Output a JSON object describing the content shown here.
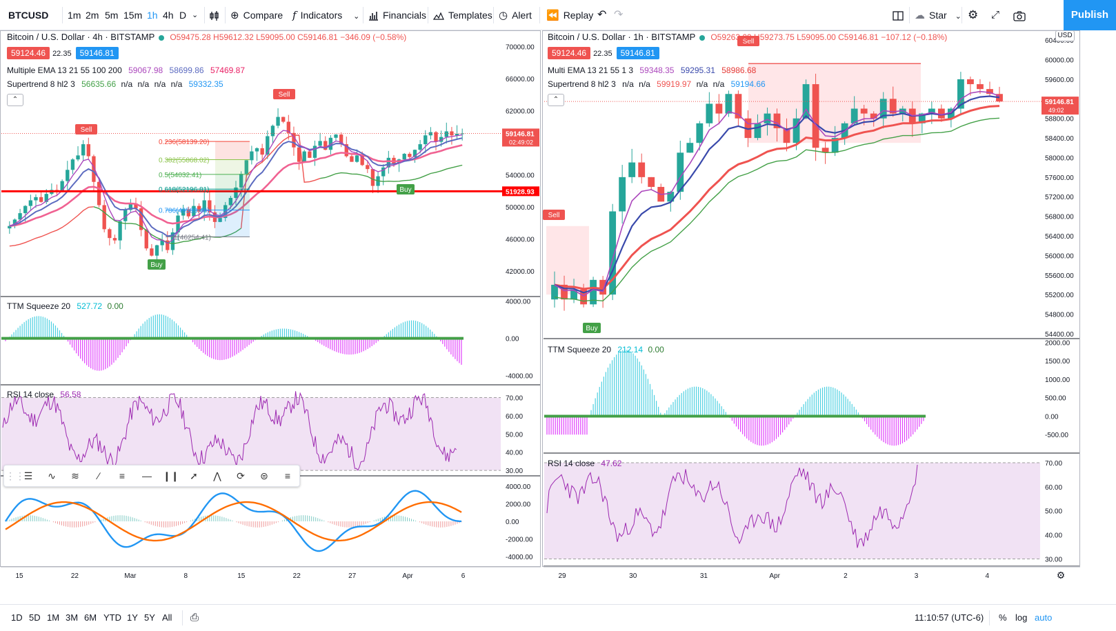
{
  "toolbar": {
    "symbol": "BTCUSD",
    "intervals": [
      "1m",
      "2m",
      "5m",
      "15m",
      "1h",
      "4h",
      "D"
    ],
    "active_interval": "1h",
    "compare": "Compare",
    "indicators": "Indicators",
    "financials": "Financials",
    "templates": "Templates",
    "alert": "Alert",
    "replay": "Replay",
    "star": "Star",
    "publish": "Publish",
    "icons": [
      "chevron-down-icon",
      "candles-icon",
      "plus-circle-icon",
      "fx-icon",
      "bar-chart-icon",
      "templates-icon",
      "alarm-clock-icon",
      "rewind-icon",
      "undo-icon",
      "redo-icon",
      "layout-icon",
      "cloud-icon",
      "gear-icon",
      "fullscreen-icon",
      "camera-icon"
    ]
  },
  "bottombar": {
    "ranges": [
      "1D",
      "5D",
      "1M",
      "3M",
      "6M",
      "YTD",
      "1Y",
      "5Y",
      "All"
    ],
    "time": "11:10:57 (UTC-6)",
    "percent": "%",
    "log": "log",
    "auto": "auto"
  },
  "drawing_toolbar": {
    "icons": [
      "drag-handle-icon",
      "horizontal-lines-icon",
      "xabcd-pattern-icon",
      "abcd-pattern-icon",
      "trend-channel-icon",
      "fib-retracement-icon",
      "horizontal-ray-icon",
      "bars-pattern-icon",
      "trend-line-icon",
      "head-shoulders-icon",
      "spiral-icon",
      "settings-lines-icon",
      "list-lines-icon"
    ]
  },
  "colors": {
    "up": "#26a69a",
    "down": "#ef5350",
    "ema_fast": "#ab47bc",
    "ema_mid": "#5c6bc0",
    "ema_slow": "#f06292",
    "rsi": "#9c27b0",
    "accent": "#2196f3",
    "red_line": "#f00",
    "macd": "#2196f3",
    "signal": "#ff6d00"
  },
  "left": {
    "title": "Bitcoin / U.S. Dollar · 4h · BITSTAMP",
    "ohlc": "O59475.28 H59612.32 L59095.00 C59146.81 −346.09 (−0.58%)",
    "bid": "59124.46",
    "spread": "22.35",
    "ask": "59146.81",
    "ema_label": "Multiple EMA 13 21 55 100 200",
    "ema_values": [
      "59067.98",
      "58699.86",
      "57469.87"
    ],
    "st_label": "Supertrend 8 hl2 3",
    "st_values": [
      "56635.66",
      "n/a",
      "n/a",
      "n/a",
      "n/a",
      "59332.35"
    ],
    "price_label": "59146.81",
    "price_countdown": "02:49:02",
    "red_line_label": "51928.93",
    "ttm_label": "TTM Squeeze 20",
    "ttm_values": [
      "527.72",
      "0.00"
    ],
    "rsi_label": "RSI 14 close",
    "rsi_value": "56.58",
    "fib_labels": [
      "0.236(58139.20)",
      "0.382(55868.02)",
      "0.5(54032.41)",
      "0.618(52196.81)",
      "0.786(49583.48)",
      "1(46254.41)"
    ],
    "annotations": {
      "sell": "Sell",
      "buy": "Buy"
    }
  },
  "right": {
    "title": "Bitcoin / U.S. Dollar · 1h · BITSTAMP",
    "ohlc": "O59263.09 H59273.75 L59095.00 C59146.81 −107.12 (−0.18%)",
    "bid": "59124.46",
    "spread": "22.35",
    "ask": "59146.81",
    "ema_label": "Multi EMA 13 21 55 1 3",
    "ema_values": [
      "59348.35",
      "59295.31",
      "58986.68"
    ],
    "st_label": "Supertrend 8 hl2 3",
    "st_values": [
      "n/a",
      "n/a",
      "59919.97",
      "n/a",
      "n/a",
      "59194.66"
    ],
    "currency": "USD",
    "price_label": "59146.81",
    "price_countdown": "49:02",
    "ttm_label": "TTM Squeeze 20",
    "ttm_values": [
      "212.14",
      "0.00"
    ],
    "rsi_label": "RSI 14 close",
    "rsi_value": "47.62",
    "annotations": {
      "sell": "Sell",
      "buy": "Buy"
    }
  },
  "chart_data": [
    {
      "id": "left-price",
      "type": "candlestick",
      "y_ticks": [
        42000,
        46000,
        50000,
        54000,
        58000,
        62000,
        66000,
        70000
      ],
      "x_ticks": [
        "15",
        "22",
        "Mar",
        "8",
        "15",
        "22",
        "27",
        "Apr",
        "6"
      ],
      "ylim": [
        38800,
        72000
      ],
      "close": [
        47600,
        48400,
        49200,
        50100,
        50800,
        51200,
        50600,
        51600,
        52100,
        51900,
        53200,
        54600,
        55900,
        56400,
        57800,
        56300,
        53100,
        50200,
        47200,
        46100,
        45800,
        48200,
        49600,
        50400,
        49800,
        47100,
        44800,
        43900,
        45200,
        45800,
        44600,
        46800,
        48900,
        49700,
        48800,
        50100,
        49400,
        50800,
        49300,
        48100,
        48600,
        50200,
        51100,
        52400,
        54100,
        55800,
        56900,
        57300,
        56500,
        58800,
        60100,
        61200,
        60600,
        59200,
        57400,
        55600,
        56900,
        56100,
        57600,
        58200,
        57100,
        58600,
        59000,
        57800,
        56300,
        55600,
        56400,
        55200,
        54700,
        52600,
        53800,
        54900,
        56100,
        55400,
        55900,
        56600,
        56200,
        57100,
        57800,
        58900,
        59300,
        58100,
        58700,
        59400,
        58900,
        59100,
        59146
      ]
    },
    {
      "id": "left-ttm",
      "type": "histogram",
      "y_ticks": [
        -4000,
        0,
        4000
      ],
      "ylim": [
        -5000,
        4500
      ]
    },
    {
      "id": "left-rsi",
      "type": "line",
      "y_ticks": [
        30,
        40,
        50,
        60,
        70
      ],
      "ylim": [
        27,
        77
      ],
      "band": [
        30,
        70
      ]
    },
    {
      "id": "left-macd",
      "type": "line",
      "y_ticks": [
        -4000,
        -2000,
        0,
        2000,
        4000
      ],
      "ylim": [
        -5200,
        5200
      ]
    },
    {
      "id": "right-price",
      "type": "candlestick",
      "y_ticks": [
        54400,
        54800,
        55200,
        55600,
        56000,
        56400,
        56800,
        57200,
        57600,
        58000,
        58400,
        58800,
        59200,
        59600,
        60000,
        60400
      ],
      "x_ticks": [
        "29",
        "30",
        "31",
        "Apr",
        "2",
        "3",
        "4"
      ],
      "ylim": [
        54300,
        60600
      ],
      "close": [
        55400,
        55100,
        55300,
        55000,
        55500,
        55200,
        56900,
        57600,
        57900,
        57600,
        57400,
        57100,
        57300,
        58100,
        58300,
        58700,
        59100,
        58900,
        59300,
        58800,
        58400,
        58700,
        58900,
        58600,
        58300,
        58800,
        59500,
        58200,
        58100,
        58400,
        58700,
        59000,
        58900,
        58800,
        59200,
        58900,
        59000,
        58700,
        58900,
        59000,
        58800,
        59000,
        59600,
        59500,
        59400,
        59300,
        59146
      ]
    },
    {
      "id": "right-ttm",
      "type": "histogram",
      "y_ticks": [
        -500,
        0,
        500,
        1000,
        1500,
        2000
      ],
      "ylim": [
        -1000,
        2100
      ]
    },
    {
      "id": "right-rsi",
      "type": "line",
      "y_ticks": [
        30,
        40,
        50,
        60,
        70
      ],
      "ylim": [
        27,
        74
      ],
      "band": [
        30,
        70
      ]
    }
  ]
}
